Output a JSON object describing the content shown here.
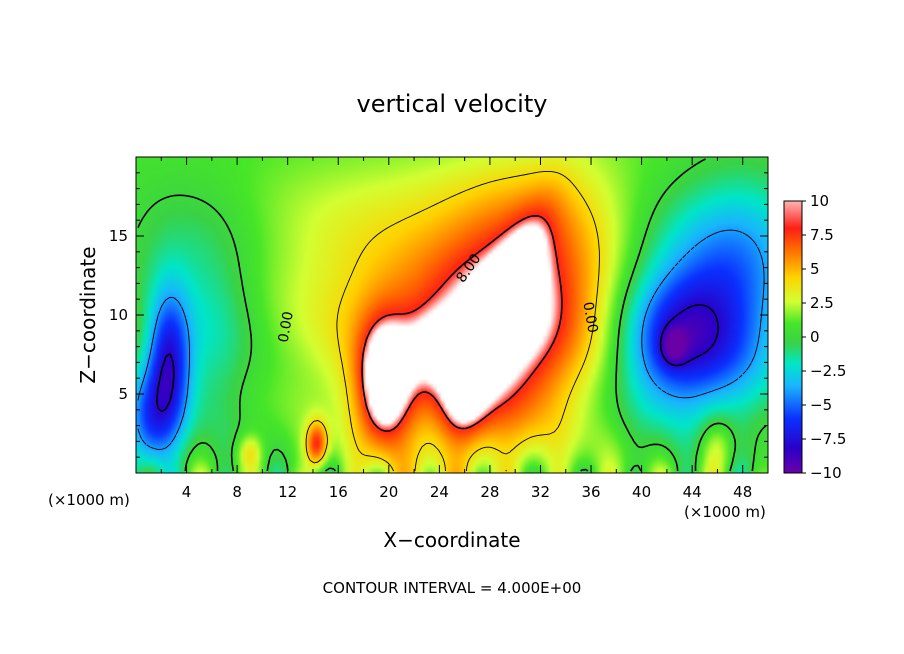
{
  "chart_data": {
    "type": "heatmap",
    "title": "vertical velocity",
    "xlabel": "X−coordinate",
    "ylabel": "Z−coordinate",
    "x_unit": "(×1000 m)",
    "footer": "CONTOUR INTERVAL = 4.000E+00",
    "xlim": [
      0,
      50
    ],
    "ylim": [
      0,
      20
    ],
    "x_ticks": [
      "4",
      "8",
      "12",
      "16",
      "20",
      "24",
      "28",
      "32",
      "36",
      "40",
      "44",
      "48"
    ],
    "y_ticks": [
      "5",
      "10",
      "15"
    ],
    "colorbar": {
      "range": [
        -10,
        10
      ],
      "ticks": [
        "10",
        "7.5",
        "5",
        "2.5",
        "0",
        "−2.5",
        "−5",
        "−7.5",
        "−10"
      ]
    },
    "contour_labels": [
      {
        "text": "0.00",
        "x": 12.2,
        "y": 9.2,
        "rotate": -80
      },
      {
        "text": "8.00",
        "x": 26.6,
        "y": 12.8,
        "rotate": -55
      },
      {
        "text": "0.00",
        "x": 35.6,
        "y": 9.8,
        "rotate": 80
      }
    ],
    "features": [
      {
        "x": 30.0,
        "y": 10.2,
        "sx": 4.6,
        "sy": 6.0,
        "rot": -45,
        "amp": 8.5
      },
      {
        "x": 29.0,
        "y": 10.5,
        "sx": 1.2,
        "sy": 4.5,
        "rot": -28,
        "amp": 4.5
      },
      {
        "x": 19.6,
        "y": 5.4,
        "sx": 1.5,
        "sy": 2.8,
        "rot": 0,
        "amp": 8.0
      },
      {
        "x": 22.0,
        "y": 8.5,
        "sx": 7.0,
        "sy": 4.5,
        "rot": -20,
        "amp": 4.0
      },
      {
        "x": 23.5,
        "y": 8.0,
        "sx": 1.4,
        "sy": 1.5,
        "rot": 0,
        "amp": 2.0
      },
      {
        "x": 26.0,
        "y": 5.0,
        "sx": 1.2,
        "sy": 2.2,
        "rot": 0,
        "amp": 3.0
      },
      {
        "x": 14.3,
        "y": 1.8,
        "sx": 0.6,
        "sy": 1.0,
        "rot": 0,
        "amp": 6.5
      },
      {
        "x": 9.0,
        "y": 1.3,
        "sx": 0.7,
        "sy": 0.8,
        "rot": 0,
        "amp": 3.0
      },
      {
        "x": 46.0,
        "y": 1.5,
        "sx": 1.0,
        "sy": 1.4,
        "rot": 0,
        "amp": 3.0
      },
      {
        "x": 24.0,
        "y": 16.5,
        "sx": 10.0,
        "sy": 3.0,
        "rot": 0,
        "amp": 1.5
      },
      {
        "x": 43.0,
        "y": 8.5,
        "sx": 3.5,
        "sy": 3.2,
        "rot": 40,
        "amp": -8.5
      },
      {
        "x": 42.5,
        "y": 8.0,
        "sx": 0.7,
        "sy": 0.8,
        "rot": 0,
        "amp": -3.5
      },
      {
        "x": 2.6,
        "y": 7.0,
        "sx": 1.2,
        "sy": 3.2,
        "rot": 0,
        "amp": -7.5
      },
      {
        "x": 1.0,
        "y": 3.0,
        "sx": 1.4,
        "sy": 2.5,
        "rot": 0,
        "amp": -5.5
      },
      {
        "x": 6.0,
        "y": 8.0,
        "sx": 2.5,
        "sy": 4.0,
        "rot": 0,
        "amp": -2.5
      },
      {
        "x": 48.0,
        "y": 10.0,
        "sx": 3.0,
        "sy": 5.0,
        "rot": 0,
        "amp": -3.5
      },
      {
        "x": 46.0,
        "y": 15.0,
        "sx": 6.0,
        "sy": 3.0,
        "rot": 0,
        "amp": -2.5
      },
      {
        "x": 4.0,
        "y": 14.5,
        "sx": 4.0,
        "sy": 3.0,
        "rot": 0,
        "amp": -1.5
      }
    ]
  }
}
